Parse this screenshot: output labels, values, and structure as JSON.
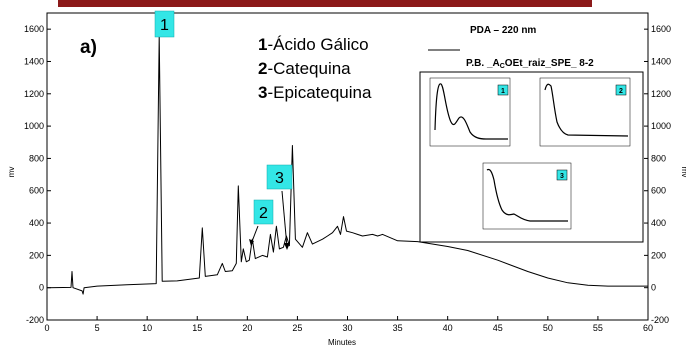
{
  "colors": {
    "top_bar": "#8c1a1a",
    "label_box": "#33e6e6",
    "trace": "#000000"
  },
  "panel_label": "a)",
  "compound_legend": [
    {
      "num": "1",
      "name": "-Ácido Gálico"
    },
    {
      "num": "2",
      "name": "-Catequina"
    },
    {
      "num": "3",
      "name": "-Epicatequina"
    }
  ],
  "peak_boxes": [
    "1",
    "2",
    "3"
  ],
  "inset": {
    "detector": "PDA – 220 nm",
    "trace_prefix": "P.B. _A",
    "trace_sub": "C",
    "trace_suffix": "OEt_raiz_SPE_ 8-2",
    "spectra_labels": [
      "1",
      "2",
      "3"
    ]
  },
  "chart_data": {
    "type": "line",
    "xlabel": "Minutes",
    "ylabel_left": "mv",
    "ylabel_right": "mv",
    "xlim": [
      0,
      60
    ],
    "ylim": [
      -200,
      1700
    ],
    "xticks": [
      0,
      5,
      10,
      15,
      20,
      25,
      30,
      35,
      40,
      45,
      50,
      55,
      60
    ],
    "yticks": [
      -200,
      0,
      200,
      400,
      600,
      800,
      1000,
      1200,
      1400,
      1600
    ],
    "series": [
      {
        "points": [
          [
            0,
            0
          ],
          [
            2.4,
            2
          ],
          [
            2.5,
            100
          ],
          [
            2.6,
            0
          ],
          [
            3.5,
            -20
          ],
          [
            3.6,
            -40
          ],
          [
            3.7,
            0
          ],
          [
            5,
            10
          ],
          [
            8,
            18
          ],
          [
            10.9,
            25
          ],
          [
            11.2,
            1560
          ],
          [
            11.5,
            40
          ],
          [
            13,
            42
          ],
          [
            15.2,
            60
          ],
          [
            15.5,
            370
          ],
          [
            15.8,
            70
          ],
          [
            17,
            80
          ],
          [
            17.5,
            150
          ],
          [
            17.8,
            100
          ],
          [
            18.5,
            105
          ],
          [
            18.9,
            150
          ],
          [
            19.1,
            630
          ],
          [
            19.4,
            160
          ],
          [
            19.6,
            240
          ],
          [
            19.9,
            160
          ],
          [
            20.2,
            170
          ],
          [
            20.5,
            300
          ],
          [
            20.8,
            180
          ],
          [
            21.5,
            200
          ],
          [
            22,
            190
          ],
          [
            22.3,
            330
          ],
          [
            22.6,
            220
          ],
          [
            22.9,
            380
          ],
          [
            23.2,
            240
          ],
          [
            23.6,
            250
          ],
          [
            23.9,
            320
          ],
          [
            24.2,
            260
          ],
          [
            24.5,
            880
          ],
          [
            24.8,
            300
          ],
          [
            25.5,
            250
          ],
          [
            26,
            340
          ],
          [
            26.5,
            270
          ],
          [
            27.5,
            300
          ],
          [
            28,
            320
          ],
          [
            28.5,
            340
          ],
          [
            29,
            380
          ],
          [
            29.3,
            330
          ],
          [
            29.6,
            440
          ],
          [
            29.9,
            350
          ],
          [
            30.5,
            340
          ],
          [
            31,
            330
          ],
          [
            31.5,
            320
          ],
          [
            32.5,
            330
          ],
          [
            33,
            320
          ],
          [
            33.5,
            330
          ],
          [
            35,
            290
          ],
          [
            37,
            285
          ],
          [
            40,
            255
          ],
          [
            42,
            230
          ],
          [
            45,
            170
          ],
          [
            48,
            100
          ],
          [
            50,
            60
          ],
          [
            52,
            30
          ],
          [
            54,
            15
          ],
          [
            56,
            10
          ],
          [
            60,
            10
          ]
        ]
      }
    ],
    "insets": [
      {
        "label": "1",
        "type": "line",
        "note": "UV spectrum"
      },
      {
        "label": "2",
        "type": "line",
        "note": "UV spectrum"
      },
      {
        "label": "3",
        "type": "line",
        "note": "UV spectrum"
      }
    ]
  }
}
